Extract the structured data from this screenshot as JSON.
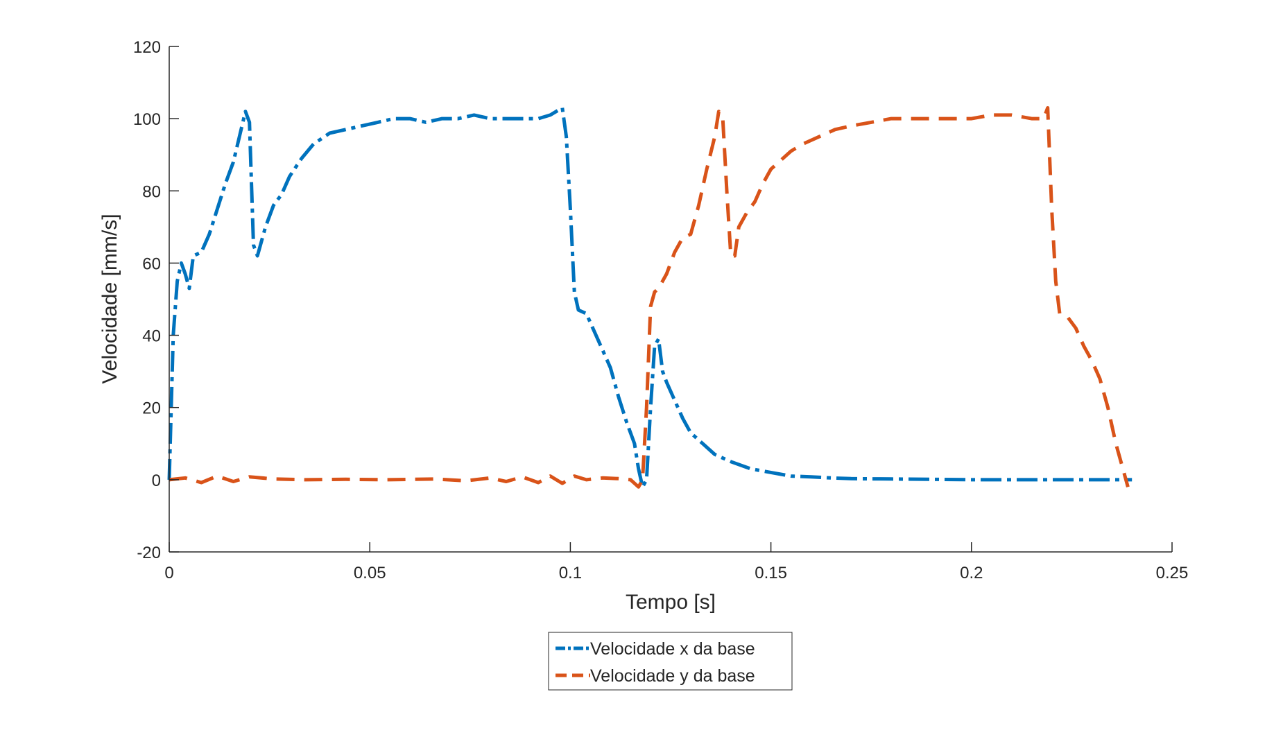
{
  "chart_data": {
    "type": "line",
    "title": "",
    "xlabel": "Tempo [s]",
    "ylabel": "Velocidade [mm/s]",
    "xlim": [
      0,
      0.25
    ],
    "ylim": [
      -20,
      120
    ],
    "xticks": [
      0,
      0.05,
      0.1,
      0.15,
      0.2,
      0.25
    ],
    "xtick_labels": [
      "0",
      "0.05",
      "0.1",
      "0.15",
      "0.2",
      "0.25"
    ],
    "yticks": [
      -20,
      0,
      20,
      40,
      60,
      80,
      100,
      120
    ],
    "ytick_labels": [
      "-20",
      "0",
      "20",
      "40",
      "60",
      "80",
      "100",
      "120"
    ],
    "grid": false,
    "legend_position": "bottom-center",
    "series": [
      {
        "name": "Velocidade x da base",
        "color": "#0072BD",
        "line_style": "dash-dot",
        "x": [
          0,
          0.001,
          0.002,
          0.003,
          0.004,
          0.005,
          0.006,
          0.008,
          0.01,
          0.012,
          0.014,
          0.016,
          0.0175,
          0.019,
          0.02,
          0.021,
          0.022,
          0.024,
          0.026,
          0.028,
          0.03,
          0.033,
          0.036,
          0.04,
          0.044,
          0.048,
          0.052,
          0.056,
          0.06,
          0.064,
          0.068,
          0.072,
          0.076,
          0.08,
          0.084,
          0.088,
          0.092,
          0.095,
          0.098,
          0.099,
          0.1,
          0.101,
          0.102,
          0.104,
          0.106,
          0.108,
          0.11,
          0.112,
          0.114,
          0.116,
          0.117,
          0.118,
          0.119,
          0.12,
          0.121,
          0.122,
          0.123,
          0.124,
          0.126,
          0.128,
          0.13,
          0.133,
          0.136,
          0.14,
          0.145,
          0.15,
          0.155,
          0.16,
          0.165,
          0.17,
          0.18,
          0.19,
          0.2,
          0.21,
          0.22,
          0.23,
          0.24
        ],
        "y": [
          0,
          40,
          55,
          60,
          57,
          53,
          62,
          63,
          68,
          75,
          82,
          88,
          95,
          102,
          99,
          65,
          62,
          70,
          76,
          79,
          84,
          89,
          93,
          96,
          97,
          98,
          99,
          100,
          100,
          99,
          100,
          100,
          101,
          100,
          100,
          100,
          100,
          101,
          103,
          95,
          75,
          52,
          47,
          46,
          41,
          36,
          31,
          23,
          16,
          10,
          3,
          -2,
          0,
          20,
          37,
          39,
          30,
          27,
          22,
          17,
          13,
          10,
          7,
          5,
          3,
          2,
          1,
          0.8,
          0.5,
          0.3,
          0.2,
          0.1,
          0,
          0,
          0,
          0,
          0
        ]
      },
      {
        "name": "Velocidade y da base",
        "color": "#D95319",
        "line_style": "dashed",
        "x": [
          0,
          0.004,
          0.008,
          0.012,
          0.016,
          0.02,
          0.026,
          0.034,
          0.044,
          0.054,
          0.066,
          0.074,
          0.08,
          0.084,
          0.088,
          0.092,
          0.095,
          0.098,
          0.101,
          0.104,
          0.108,
          0.112,
          0.115,
          0.117,
          0.118,
          0.119,
          0.12,
          0.121,
          0.122,
          0.124,
          0.126,
          0.128,
          0.13,
          0.132,
          0.134,
          0.136,
          0.137,
          0.138,
          0.139,
          0.14,
          0.141,
          0.142,
          0.144,
          0.146,
          0.148,
          0.15,
          0.152,
          0.155,
          0.158,
          0.162,
          0.166,
          0.17,
          0.175,
          0.18,
          0.185,
          0.19,
          0.195,
          0.2,
          0.205,
          0.21,
          0.215,
          0.218,
          0.219,
          0.22,
          0.221,
          0.222,
          0.224,
          0.226,
          0.228,
          0.23,
          0.232,
          0.234,
          0.236,
          0.238,
          0.239
        ],
        "y": [
          0,
          0.5,
          -0.8,
          1,
          -0.5,
          0.8,
          0.2,
          0,
          0.1,
          0,
          0.2,
          -0.3,
          0.5,
          -0.5,
          0.8,
          -0.8,
          1,
          -1,
          1,
          0,
          0.5,
          0.3,
          0,
          -2,
          0,
          20,
          48,
          52,
          53,
          57,
          63,
          67,
          68,
          76,
          86,
          95,
          102,
          100,
          80,
          62,
          62,
          70,
          74,
          77,
          82,
          86,
          88,
          91,
          93,
          95,
          97,
          98,
          99,
          100,
          100,
          100,
          100,
          100,
          101,
          101,
          100,
          100,
          103,
          75,
          55,
          46,
          45,
          42,
          37,
          33,
          28,
          20,
          10,
          2,
          -2
        ]
      }
    ]
  }
}
